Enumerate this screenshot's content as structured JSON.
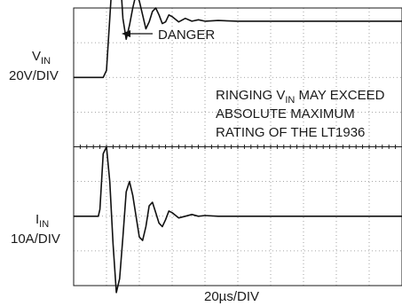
{
  "chart_data": {
    "type": "line",
    "title": "",
    "xlabel": "20µs/DIV",
    "x_divisions": 10,
    "y_divisions": 8,
    "grid": true,
    "series": [
      {
        "name": "V",
        "name_sub": "IN",
        "scale": "20V/DIV",
        "x": [
          0,
          0.9,
          1.0,
          1.1,
          1.2,
          1.3,
          1.4,
          1.5,
          1.6,
          1.7,
          1.8,
          1.9,
          2.0,
          2.1,
          2.2,
          2.3,
          2.4,
          2.5,
          2.6,
          2.7,
          2.8,
          2.9,
          3.0,
          3.2,
          3.4,
          3.6,
          3.8,
          4.0,
          4.4,
          5.0,
          6.0,
          7.0,
          8.0,
          9.0,
          10.0
        ],
        "y": [
          2.0,
          2.0,
          2.2,
          3.7,
          5.2,
          6.0,
          5.2,
          3.7,
          3.1,
          3.5,
          4.0,
          4.4,
          4.2,
          3.8,
          3.4,
          3.6,
          3.9,
          4.0,
          3.8,
          3.55,
          3.6,
          3.8,
          3.75,
          3.6,
          3.7,
          3.62,
          3.66,
          3.62,
          3.64,
          3.62,
          3.62,
          3.62,
          3.62,
          3.62,
          3.62
        ]
      },
      {
        "name": "I",
        "name_sub": "IN",
        "scale": "10A/DIV",
        "x": [
          0,
          0.75,
          0.8,
          0.9,
          1.0,
          1.1,
          1.2,
          1.3,
          1.4,
          1.5,
          1.6,
          1.7,
          1.8,
          1.9,
          2.0,
          2.1,
          2.2,
          2.3,
          2.4,
          2.5,
          2.6,
          2.7,
          2.8,
          2.9,
          3.0,
          3.2,
          3.4,
          3.6,
          3.8,
          4.0,
          4.4,
          5.0,
          6.0,
          7.0,
          8.0,
          9.0,
          10.0
        ],
        "y": [
          -2.0,
          -2.0,
          -1.8,
          -0.2,
          0.0,
          -1.0,
          -2.8,
          -4.2,
          -3.8,
          -2.6,
          -1.3,
          -1.0,
          -1.4,
          -2.0,
          -2.6,
          -2.7,
          -2.3,
          -1.7,
          -1.6,
          -1.9,
          -2.2,
          -2.3,
          -2.1,
          -1.85,
          -1.9,
          -2.05,
          -2.0,
          -1.95,
          -2.0,
          -1.98,
          -2.0,
          -2.0,
          -2.0,
          -2.0,
          -2.0,
          -2.0,
          -2.0
        ]
      }
    ],
    "annotations": {
      "danger": "DANGER",
      "note_line1_prefix": "RINGING V",
      "note_line1_sub": "IN",
      "note_line1_suffix": " MAY EXCEED",
      "note_line2": "ABSOLUTE MAXIMUM",
      "note_line3": "RATING OF THE LT1936"
    }
  }
}
